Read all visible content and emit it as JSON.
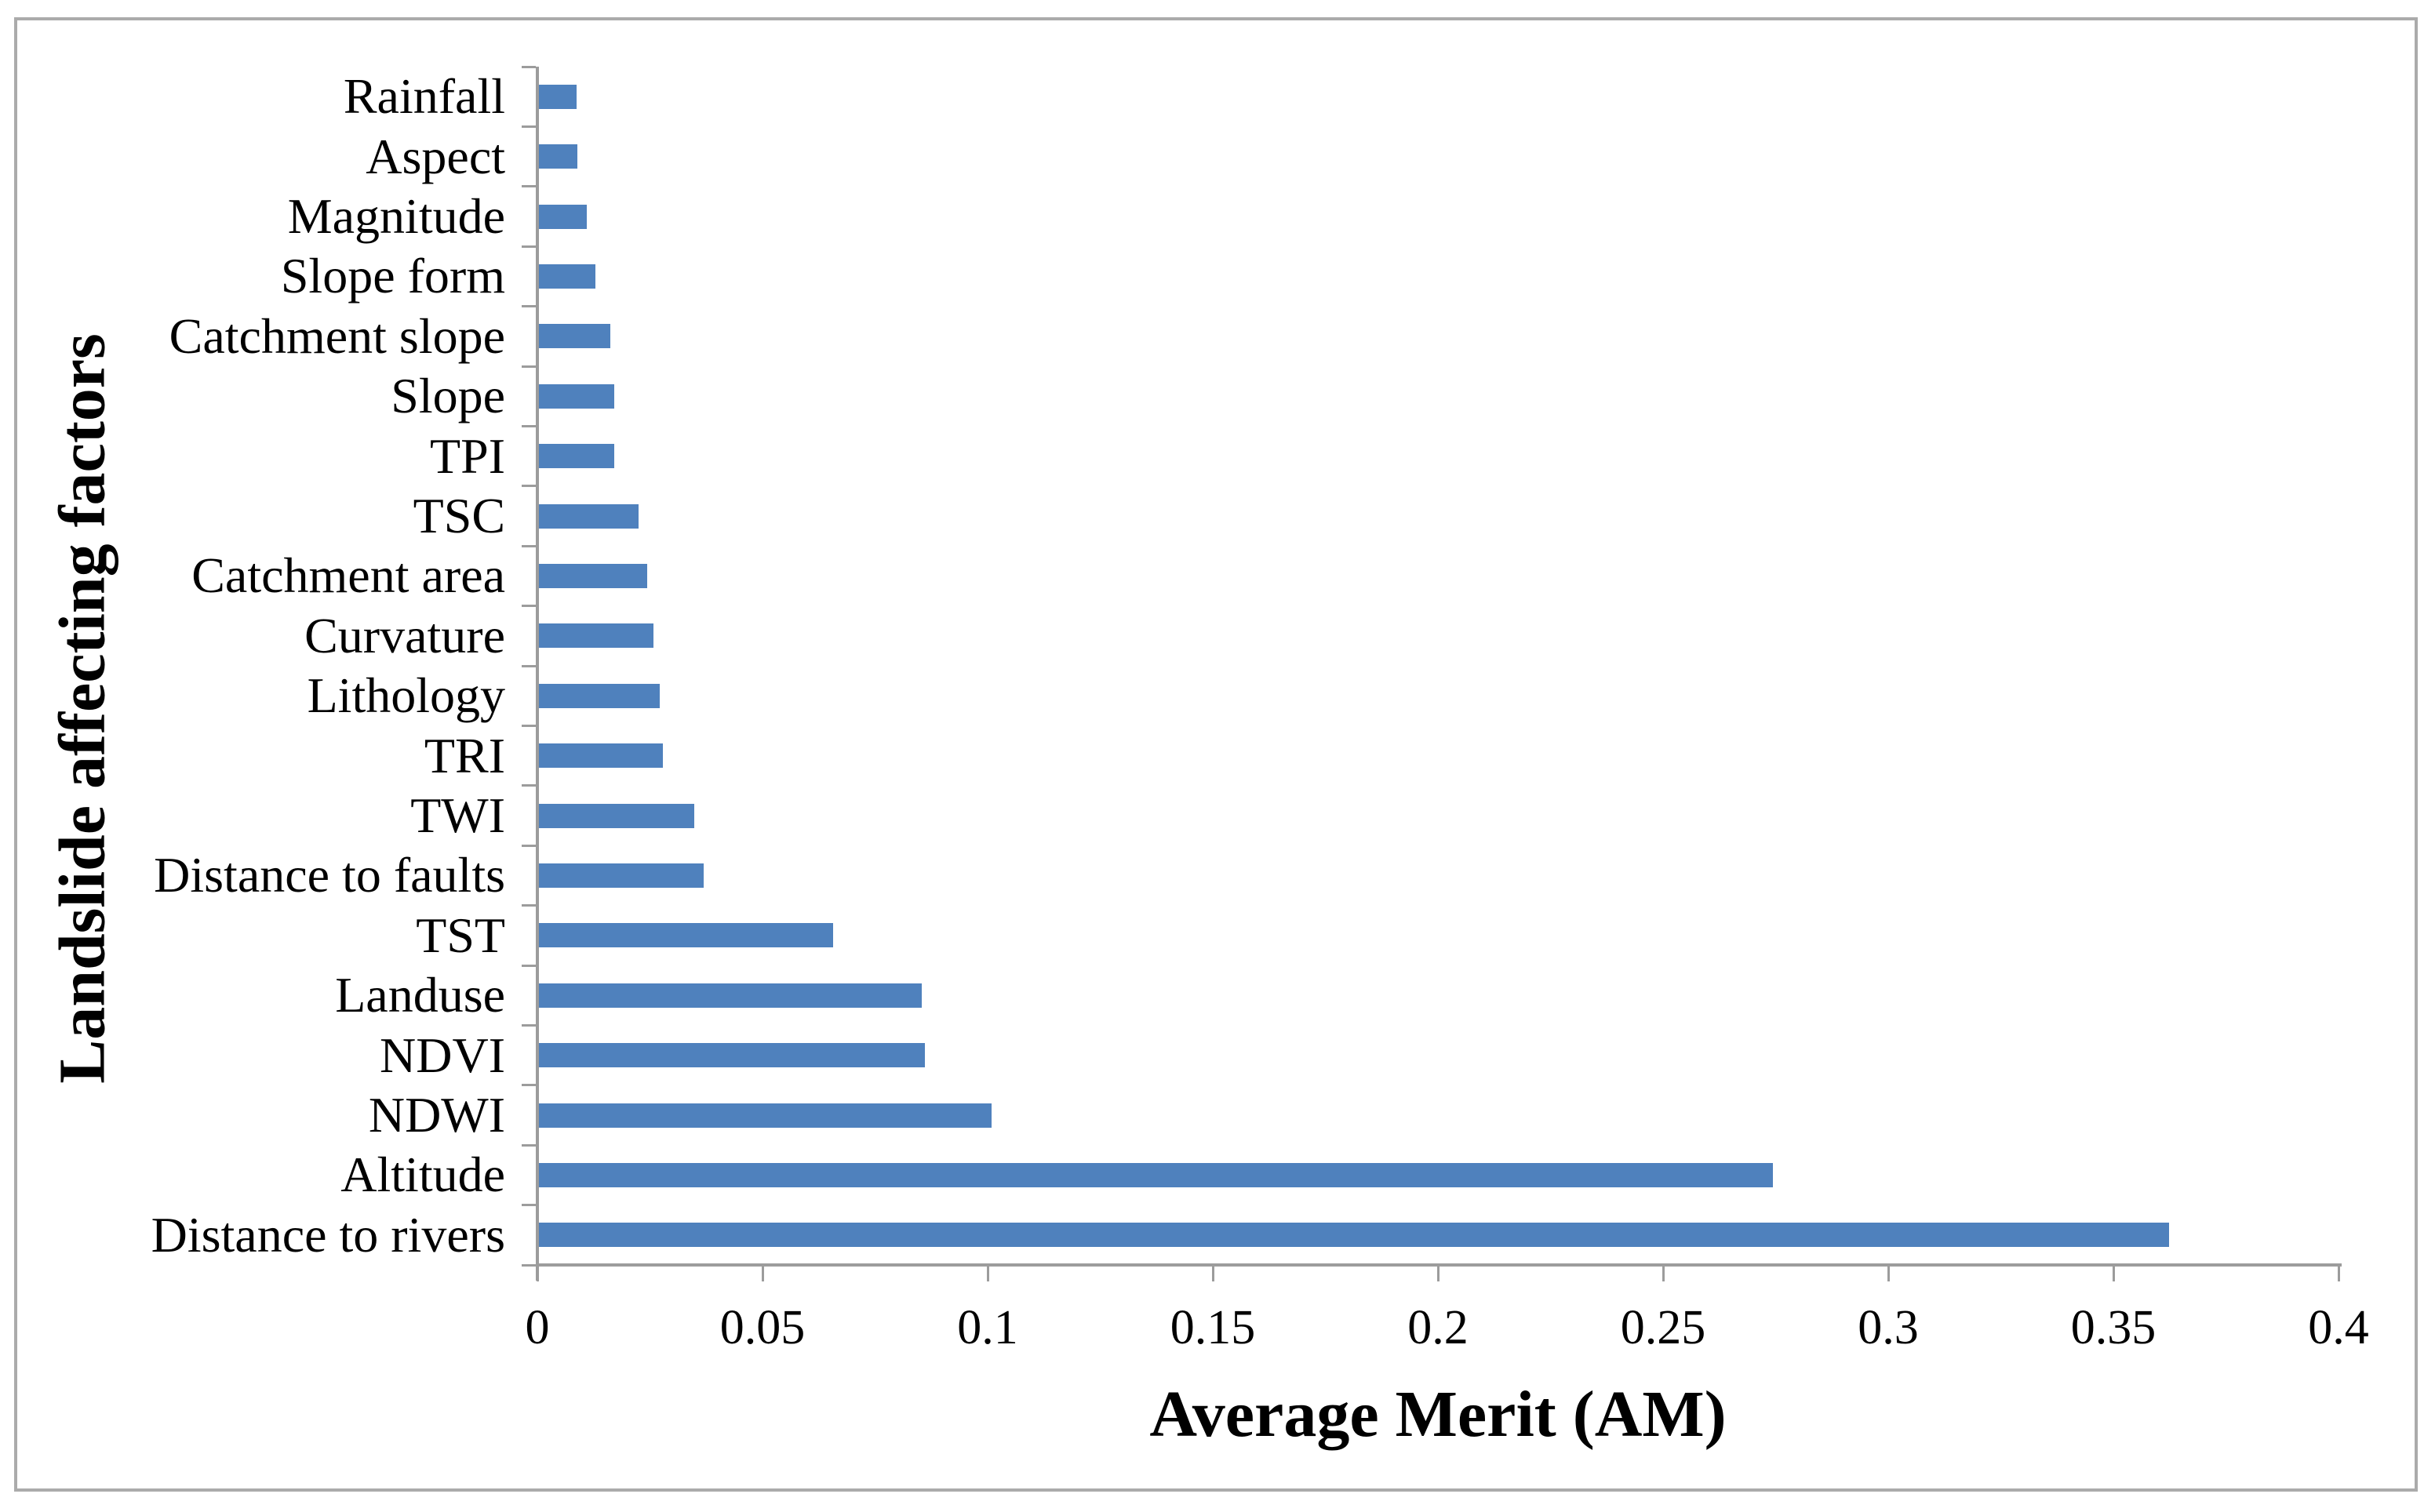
{
  "figure": {
    "background": "#ffffff",
    "border_color": "#ababab"
  },
  "chart_data": {
    "type": "bar",
    "orientation": "horizontal",
    "title": "",
    "xlabel": "Average Merit (AM)",
    "ylabel": "Landslide affecting factors",
    "categories_top_to_bottom": [
      "Rainfall",
      "Aspect",
      "Magnitude",
      "Slope form",
      "Catchment slope",
      "Slope",
      "TPI",
      "TSC",
      "Catchment area",
      "Curvature",
      "Lithology",
      "TRI",
      "TWI",
      "Distance to faults",
      "TST",
      "Landuse",
      "NDVI",
      "NDWI",
      "Altitude",
      "Distance to rivers"
    ],
    "values": [
      0.0083,
      0.0086,
      0.0107,
      0.0125,
      0.0159,
      0.0168,
      0.0168,
      0.0221,
      0.024,
      0.0254,
      0.0268,
      0.0275,
      0.0345,
      0.0366,
      0.0653,
      0.085,
      0.0858,
      0.1006,
      0.274,
      0.362
    ],
    "xlim": [
      0,
      0.4
    ],
    "xticks": [
      0,
      0.05,
      0.1,
      0.15,
      0.2,
      0.25,
      0.3,
      0.35,
      0.4
    ],
    "xtick_labels": [
      "0",
      "0.05",
      "0.1",
      "0.15",
      "0.2",
      "0.25",
      "0.3",
      "0.35",
      "0.4"
    ],
    "bar_color": "#4f81bd",
    "axis_color": "#9c9c9c",
    "grid": false,
    "legend": null
  }
}
